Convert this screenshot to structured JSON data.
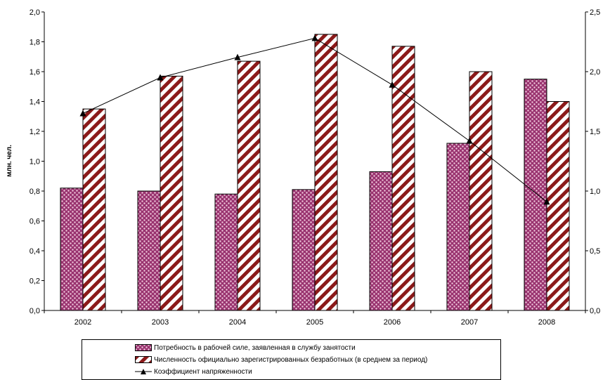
{
  "chart_data": {
    "type": "bar",
    "categories": [
      "2002",
      "2003",
      "2004",
      "2005",
      "2006",
      "2007",
      "2008"
    ],
    "ylabel": "млн. чел.",
    "ylim": [
      0,
      2.0
    ],
    "y_ticks": [
      "0,0",
      "0,2",
      "0,4",
      "0,6",
      "0,8",
      "1,0",
      "1,2",
      "1,4",
      "1,6",
      "1,8",
      "2,0"
    ],
    "y2lim": [
      0,
      2.5
    ],
    "y2_ticks": [
      "0,0",
      "0,5",
      "1,0",
      "1,5",
      "2,0",
      "2,5"
    ],
    "grid": false,
    "legend_position": "bottom",
    "series": [
      {
        "name": "Потребность в рабочей силе, заявленная в службу занятости",
        "kind": "bar",
        "axis": "left",
        "color": "#99336f",
        "values": [
          0.82,
          0.8,
          0.78,
          0.81,
          0.93,
          1.12,
          1.55
        ]
      },
      {
        "name": "Численность официально зарегистрированных безработных (в среднем за период)",
        "kind": "bar",
        "axis": "left",
        "color": "#8b1a1a",
        "values": [
          1.35,
          1.57,
          1.67,
          1.85,
          1.77,
          1.6,
          1.4
        ]
      },
      {
        "name": "Коэффициент напряженности",
        "kind": "line",
        "axis": "right",
        "color": "#000000",
        "values": [
          1.65,
          1.95,
          2.12,
          2.28,
          1.89,
          1.42,
          0.91
        ]
      }
    ]
  }
}
